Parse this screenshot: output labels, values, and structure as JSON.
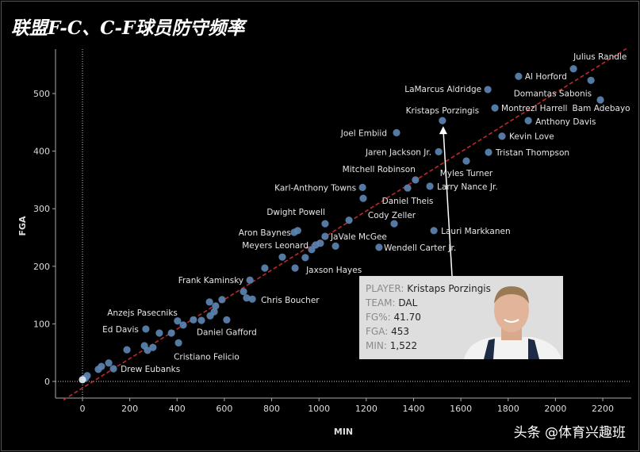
{
  "title": "联盟F-C、C-F球员防守频率",
  "watermark": "头条 @体育兴趣班",
  "chart_data": {
    "type": "scatter",
    "title": "联盟F-C、C-F球员防守频率",
    "xlabel": "MIN",
    "ylabel": "FGA",
    "xlim": [
      -100,
      2300
    ],
    "ylim": [
      -25,
      570
    ],
    "xticks": [
      0,
      200,
      400,
      600,
      800,
      1000,
      1200,
      1400,
      1600,
      1800,
      2000,
      2200
    ],
    "yticks": [
      0,
      100,
      200,
      300,
      400,
      500
    ],
    "grid": false,
    "trendline": {
      "style": "dashed",
      "color": "#c0282d"
    },
    "point_color": "#5b84b1",
    "points": [
      {
        "name": "Julius Randle",
        "x": 2076,
        "y": 543
      },
      {
        "name": "Al Horford",
        "x": 1844,
        "y": 530
      },
      {
        "name": "LaMarcus Aldridge",
        "x": 1714,
        "y": 507
      },
      {
        "name": "Domantas Sabonis",
        "x": 2150,
        "y": 523
      },
      {
        "name": "Bam Adebayo",
        "x": 2190,
        "y": 489
      },
      {
        "name": "Montrezl Harrell",
        "x": 1744,
        "y": 475
      },
      {
        "name": "Anthony Davis",
        "x": 1885,
        "y": 453
      },
      {
        "name": "Kristaps Porzingis",
        "x": 1522,
        "y": 453
      },
      {
        "name": "Joel Embiid",
        "x": 1328,
        "y": 432
      },
      {
        "name": "Kevin Love",
        "x": 1774,
        "y": 426
      },
      {
        "name": "Jaren Jackson Jr.",
        "x": 1506,
        "y": 399
      },
      {
        "name": "Tristan Thompson",
        "x": 1717,
        "y": 398
      },
      {
        "name": "Myles Turner",
        "x": 1623,
        "y": 383
      },
      {
        "name": "Mitchell Robinson",
        "x": 1408,
        "y": 350
      },
      {
        "name": "Karl-Anthony Towns",
        "x": 1184,
        "y": 337
      },
      {
        "name": "Larry Nance Jr.",
        "x": 1469,
        "y": 339
      },
      {
        "name": "Daniel Theis",
        "x": 1375,
        "y": 336
      },
      {
        "name": "Dwight Powell",
        "x": 1026,
        "y": 274
      },
      {
        "name": "Cody Zeller",
        "x": 1318,
        "y": 274
      },
      {
        "name": "Lauri Markkanen",
        "x": 1486,
        "y": 262
      },
      {
        "name": "Aron Baynes",
        "x": 895,
        "y": 259
      },
      {
        "name": "JaVale McGee",
        "x": 1026,
        "y": 252
      },
      {
        "name": "Meyers Leonard",
        "x": 986,
        "y": 237
      },
      {
        "name": "Wendell Carter Jr.",
        "x": 1254,
        "y": 233
      },
      {
        "name": "Jaxson Hayes",
        "x": 899,
        "y": 197
      },
      {
        "name": "Frank Kaminsky",
        "x": 708,
        "y": 176
      },
      {
        "name": "Chris Boucher",
        "x": 718,
        "y": 143
      },
      {
        "name": "Anzejs Pasecniks",
        "x": 325,
        "y": 84
      },
      {
        "name": "Ed Davis",
        "x": 268,
        "y": 91
      },
      {
        "name": "Daniel Gafford",
        "x": 610,
        "y": 107
      },
      {
        "name": "Cristiano Felicio",
        "x": 406,
        "y": 67
      },
      {
        "name": "Drew Eubanks",
        "x": 131,
        "y": 22
      },
      {
        "name": "",
        "x": 1187,
        "y": 318
      },
      {
        "name": "",
        "x": 910,
        "y": 262
      },
      {
        "name": "",
        "x": 13,
        "y": 6
      },
      {
        "name": "",
        "x": 20,
        "y": 10
      },
      {
        "name": "",
        "x": 67,
        "y": 21
      },
      {
        "name": "",
        "x": 80,
        "y": 26
      },
      {
        "name": "",
        "x": 111,
        "y": 32
      },
      {
        "name": "",
        "x": 188,
        "y": 55
      },
      {
        "name": "",
        "x": 262,
        "y": 62
      },
      {
        "name": "",
        "x": 275,
        "y": 54
      },
      {
        "name": "",
        "x": 298,
        "y": 59
      },
      {
        "name": "",
        "x": 376,
        "y": 84
      },
      {
        "name": "",
        "x": 402,
        "y": 105
      },
      {
        "name": "",
        "x": 426,
        "y": 98
      },
      {
        "name": "",
        "x": 469,
        "y": 107
      },
      {
        "name": "",
        "x": 503,
        "y": 106
      },
      {
        "name": "",
        "x": 537,
        "y": 138
      },
      {
        "name": "",
        "x": 563,
        "y": 131
      },
      {
        "name": "",
        "x": 557,
        "y": 121
      },
      {
        "name": "",
        "x": 540,
        "y": 114
      },
      {
        "name": "",
        "x": 590,
        "y": 142
      },
      {
        "name": "",
        "x": 681,
        "y": 156
      },
      {
        "name": "",
        "x": 694,
        "y": 145
      },
      {
        "name": "",
        "x": 771,
        "y": 197
      },
      {
        "name": "",
        "x": 845,
        "y": 216
      },
      {
        "name": "",
        "x": 942,
        "y": 215
      },
      {
        "name": "",
        "x": 969,
        "y": 229
      },
      {
        "name": "",
        "x": 1006,
        "y": 240
      },
      {
        "name": "",
        "x": 1070,
        "y": 235
      },
      {
        "name": "",
        "x": 1127,
        "y": 280
      },
      {
        "name": "",
        "x": 0,
        "y": 3
      }
    ],
    "tooltip": {
      "target": "Kristaps Porzingis",
      "rows": [
        {
          "key": "PLAYER:",
          "value": "Kristaps Porzingis"
        },
        {
          "key": "TEAM:",
          "value": "DAL"
        },
        {
          "key": "FG%:",
          "value": "41.70"
        },
        {
          "key": "FGA:",
          "value": "453"
        },
        {
          "key": "MIN:",
          "value": "1,522"
        }
      ]
    }
  }
}
